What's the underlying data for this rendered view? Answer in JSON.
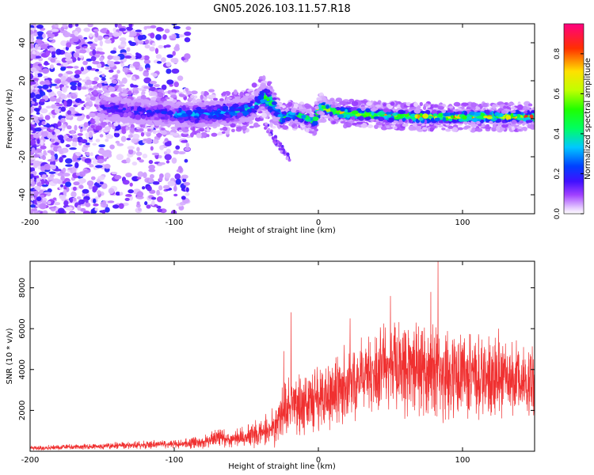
{
  "figure_title": "GN05.2026.103.11.57.R18",
  "chart_data": [
    {
      "type": "heatmap",
      "name": "spectrogram",
      "xlabel": "Height of straight line (km)",
      "ylabel": "Frequency (Hz)",
      "xlim": [
        -200,
        150
      ],
      "ylim": [
        -50,
        50
      ],
      "xticks": [
        -200,
        -100,
        0,
        100
      ],
      "xtick_labels": [
        "-200",
        "-100",
        "0",
        "100"
      ],
      "yticks": [
        -40,
        -20,
        0,
        20,
        40
      ],
      "ytick_labels": [
        "-40",
        "-20",
        "0",
        "20",
        "40"
      ],
      "ridge_frequency_hz": [
        {
          "x": -150,
          "y": 6
        },
        {
          "x": -130,
          "y": 4
        },
        {
          "x": -110,
          "y": 3
        },
        {
          "x": -90,
          "y": 2
        },
        {
          "x": -70,
          "y": 3
        },
        {
          "x": -55,
          "y": 4
        },
        {
          "x": -45,
          "y": 6
        },
        {
          "x": -38,
          "y": 12
        },
        {
          "x": -32,
          "y": 8
        },
        {
          "x": -26,
          "y": 0
        },
        {
          "x": -20,
          "y": 2
        },
        {
          "x": -10,
          "y": 1
        },
        {
          "x": -3,
          "y": -2
        },
        {
          "x": 1,
          "y": 6
        },
        {
          "x": 15,
          "y": 3
        },
        {
          "x": 40,
          "y": 2
        },
        {
          "x": 70,
          "y": 1
        },
        {
          "x": 100,
          "y": 1
        },
        {
          "x": 130,
          "y": 1
        },
        {
          "x": 150,
          "y": 1
        }
      ],
      "colorbar": {
        "label": "Normalized spectral amplitude",
        "range": [
          0,
          0.95
        ],
        "ticks": [
          0.0,
          0.2,
          0.4,
          0.6,
          0.8
        ],
        "tick_labels": [
          "0.0",
          "0.2",
          "0.4",
          "0.6",
          "0.8"
        ]
      }
    },
    {
      "type": "line",
      "name": "snr",
      "color": "#f03030",
      "xlabel": "Height of straight line (km)",
      "ylabel": "SNR (10 * v/v)",
      "xlim": [
        -200,
        150
      ],
      "ylim": [
        0,
        9300
      ],
      "xticks": [
        -200,
        -100,
        0,
        100
      ],
      "xtick_labels": [
        "-200",
        "-100",
        "0",
        "100"
      ],
      "yticks": [
        2000,
        4000,
        6000,
        8000
      ],
      "ytick_labels": [
        "2000",
        "4000",
        "6000",
        "8000"
      ],
      "envelope": {
        "x": [
          -200,
          -150,
          -100,
          -80,
          -70,
          -60,
          -50,
          -40,
          -30,
          -25,
          -20,
          -10,
          0,
          10,
          20,
          30,
          40,
          50,
          60,
          70,
          80,
          90,
          100,
          110,
          120,
          130,
          140,
          150
        ],
        "mean": [
          150,
          250,
          350,
          450,
          700,
          600,
          700,
          900,
          1200,
          1800,
          2300,
          2400,
          2600,
          3000,
          3300,
          3700,
          3900,
          4000,
          3900,
          3900,
          3800,
          3800,
          3800,
          3700,
          3600,
          3600,
          3500,
          3600
        ],
        "amp": [
          120,
          180,
          250,
          350,
          550,
          450,
          600,
          800,
          1100,
          1600,
          1800,
          1800,
          1900,
          2000,
          2200,
          2500,
          2600,
          2700,
          2700,
          2600,
          2700,
          2600,
          2500,
          2400,
          2300,
          2300,
          2200,
          2200
        ]
      },
      "peaks": [
        {
          "x": -24,
          "y": 4900
        },
        {
          "x": -19,
          "y": 6800
        },
        {
          "x": 22,
          "y": 6500
        },
        {
          "x": 50,
          "y": 7600
        },
        {
          "x": 83,
          "y": 9300
        },
        {
          "x": 78,
          "y": 7800
        },
        {
          "x": 125,
          "y": 6000
        }
      ]
    }
  ]
}
